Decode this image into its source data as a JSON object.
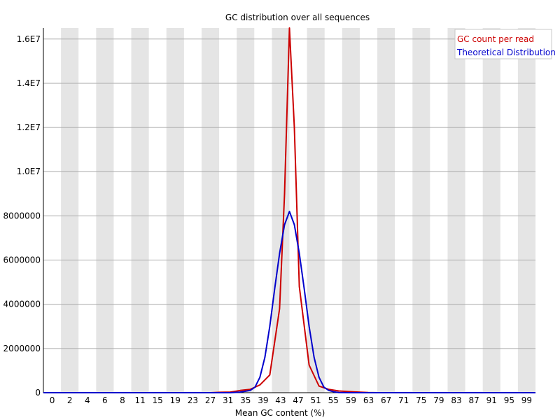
{
  "chart_data": {
    "type": "line",
    "title": "GC distribution over all sequences",
    "xlabel": "Mean GC content (%)",
    "ylabel": "",
    "x_tick_labels": [
      "0",
      "2",
      "4",
      "6",
      "8",
      "11",
      "15",
      "19",
      "23",
      "27",
      "31",
      "35",
      "39",
      "43",
      "47",
      "51",
      "55",
      "59",
      "63",
      "67",
      "71",
      "75",
      "79",
      "83",
      "87",
      "91",
      "95",
      "99"
    ],
    "y_tick_labels": [
      "0",
      "2000000",
      "4000000",
      "6000000",
      "8000000",
      "1.0E7",
      "1.2E7",
      "1.4E7",
      "1.6E7"
    ],
    "y_tick_values": [
      0,
      2000000,
      4000000,
      6000000,
      8000000,
      10000000,
      12000000,
      14000000,
      16000000
    ],
    "xlim": [
      0,
      100
    ],
    "ylim": [
      0,
      16500000
    ],
    "grid": true,
    "legend_position": "top-right",
    "series": [
      {
        "name": "GC count per read",
        "color": "#cc0000",
        "points": [
          [
            0,
            0
          ],
          [
            34,
            0
          ],
          [
            36,
            20000
          ],
          [
            38,
            30000
          ],
          [
            40,
            100000
          ],
          [
            42,
            150000
          ],
          [
            44,
            350000
          ],
          [
            46,
            800000
          ],
          [
            48,
            3800000
          ],
          [
            49,
            9000000
          ],
          [
            50,
            16600000
          ],
          [
            51,
            12000000
          ],
          [
            52,
            4800000
          ],
          [
            54,
            1250000
          ],
          [
            56,
            300000
          ],
          [
            58,
            150000
          ],
          [
            60,
            80000
          ],
          [
            62,
            50000
          ],
          [
            64,
            30000
          ],
          [
            66,
            5000
          ],
          [
            68,
            0
          ],
          [
            100,
            0
          ]
        ]
      },
      {
        "name": "Theoretical Distribution",
        "color": "#0000cc",
        "points": [
          [
            0,
            0
          ],
          [
            38,
            0
          ],
          [
            40,
            30000
          ],
          [
            42,
            100000
          ],
          [
            43,
            250000
          ],
          [
            44,
            700000
          ],
          [
            45,
            1600000
          ],
          [
            46,
            3000000
          ],
          [
            47,
            4700000
          ],
          [
            48,
            6300000
          ],
          [
            49,
            7600000
          ],
          [
            50,
            8200000
          ],
          [
            51,
            7600000
          ],
          [
            52,
            6300000
          ],
          [
            53,
            4700000
          ],
          [
            54,
            3000000
          ],
          [
            55,
            1600000
          ],
          [
            56,
            700000
          ],
          [
            57,
            250000
          ],
          [
            58,
            100000
          ],
          [
            59,
            40000
          ],
          [
            60,
            10000
          ],
          [
            62,
            0
          ],
          [
            100,
            0
          ]
        ]
      }
    ]
  }
}
